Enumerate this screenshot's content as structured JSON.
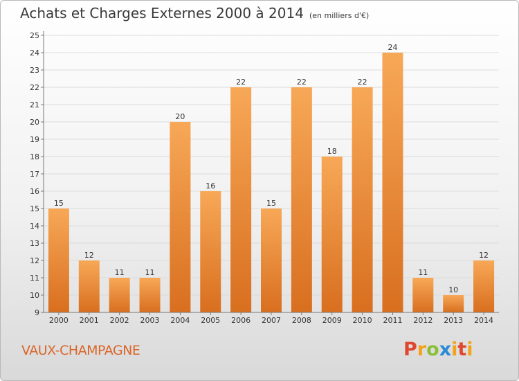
{
  "title": "Achats et Charges Externes 2000 à 2014",
  "subtitle": "(en milliers d'€)",
  "location": "VAUX-CHAMPAGNE",
  "brand": "Proxiti",
  "colors": {
    "bar_top": "#f7a857",
    "bar_bottom": "#d86f1f",
    "accent": "#d9662a"
  },
  "chart_data": {
    "type": "bar",
    "categories": [
      "2000",
      "2001",
      "2002",
      "2003",
      "2004",
      "2005",
      "2006",
      "2007",
      "2008",
      "2009",
      "2010",
      "2011",
      "2012",
      "2013",
      "2014"
    ],
    "values": [
      15,
      12,
      11,
      11,
      20,
      16,
      22,
      15,
      22,
      18,
      22,
      24,
      11,
      10,
      12
    ],
    "ylim": [
      9,
      25
    ],
    "yticks": [
      9,
      10,
      11,
      12,
      13,
      14,
      15,
      16,
      17,
      18,
      19,
      20,
      21,
      22,
      23,
      24,
      25
    ],
    "grid": true,
    "data_labels": true
  }
}
